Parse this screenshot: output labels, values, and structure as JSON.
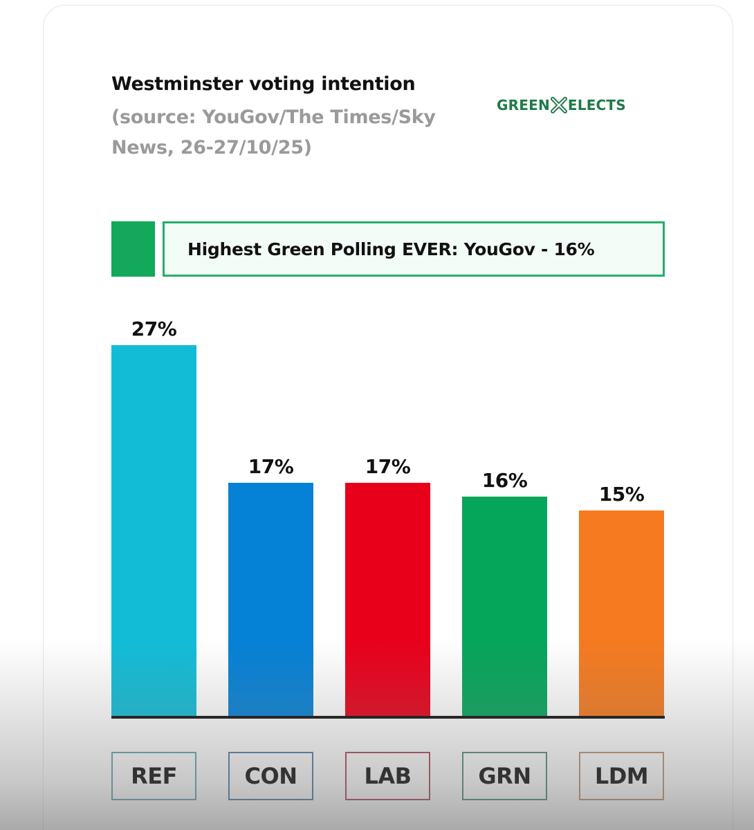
{
  "header": {
    "title": "Westminster voting intention",
    "subtitle": "(source: YouGov/The Times/Sky News, 26-27/10/25)"
  },
  "logo": {
    "left_text": "GREEN",
    "icon": "x-cross-icon",
    "right_text": "ELECTS",
    "color": "#1f7a47"
  },
  "banner": {
    "text": "Highest Green Polling EVER: YouGov - 16%",
    "swatch_color": "#14a85a",
    "border_color": "#22b066"
  },
  "chart_data": {
    "type": "bar",
    "title": "Westminster voting intention",
    "subtitle": "(source: YouGov/The Times/Sky News, 26-27/10/25)",
    "annotation": "Highest Green Polling EVER: YouGov - 16%",
    "categories": [
      "REF",
      "CON",
      "LAB",
      "GRN",
      "LDM"
    ],
    "values": [
      27,
      17,
      17,
      16,
      15
    ],
    "value_labels": [
      "27%",
      "17%",
      "17%",
      "16%",
      "15%"
    ],
    "colors": [
      "#12bcd6",
      "#0581d6",
      "#e8001a",
      "#05a55a",
      "#f57a20"
    ],
    "label_border_colors": [
      "#5fa6b0",
      "#4d7fa6",
      "#b0485a",
      "#4f9072",
      "#c09270"
    ],
    "xlabel": "",
    "ylabel": "",
    "ylim": [
      0,
      27
    ],
    "grid": false,
    "legend": "none",
    "unit": "%"
  }
}
